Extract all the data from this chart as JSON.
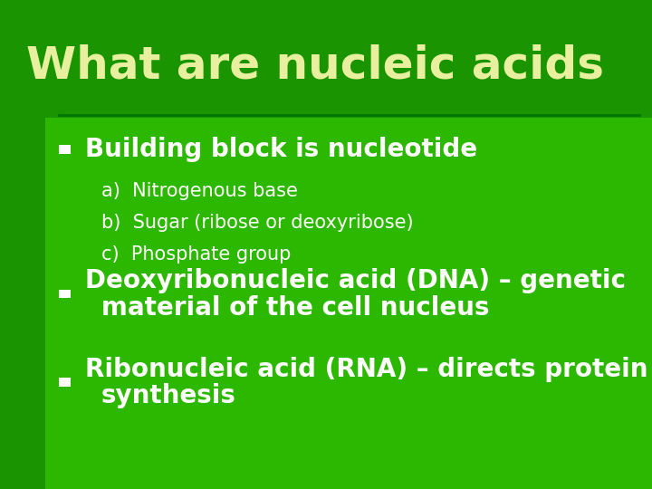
{
  "title": "What are nucleic acids",
  "title_color": "#e8f0a0",
  "title_fontsize": 36,
  "bg_color_outer": "#1a9400",
  "bg_color_inner": "#2db800",
  "line_color": "#007700",
  "bullet_color": "#ffffff",
  "bullet1_text": "Building block is nucleotide",
  "bullet1_color": "#ffffff",
  "bullet1_fontsize": 20,
  "sub_items": [
    "a)  Nitrogenous base",
    "b)  Sugar (ribose or deoxyribose)",
    "c)  Phosphate group"
  ],
  "sub_color": "#ffffff",
  "sub_fontsize": 15,
  "bullet2_line1": "Deoxyribonucleic acid (DNA) – genetic",
  "bullet2_line2": "material of the cell nucleus",
  "bullet2_color": "#ffffff",
  "bullet2_fontsize": 20,
  "bullet3_line1": "Ribonucleic acid (RNA) – directs protein",
  "bullet3_line2": "synthesis",
  "bullet3_color": "#ffffff",
  "bullet3_fontsize": 20,
  "figw": 7.2,
  "figh": 5.4,
  "dpi": 100
}
